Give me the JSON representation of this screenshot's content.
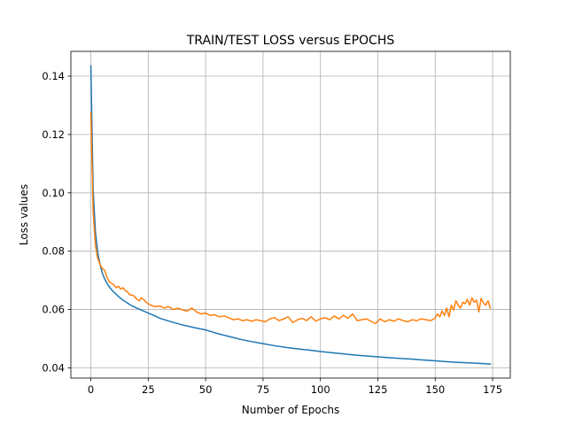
{
  "chart_data": {
    "type": "line",
    "title": "TRAIN/TEST LOSS versus EPOCHS",
    "xlabel": "Number of Epochs",
    "ylabel": "Loss values",
    "xlim": [
      -8.7,
      182.7
    ],
    "ylim": [
      0.0365,
      0.1485
    ],
    "xticks": [
      0,
      25,
      50,
      75,
      100,
      125,
      150,
      175
    ],
    "yticks": [
      0.04,
      0.06,
      0.08,
      0.1,
      0.12,
      0.14
    ],
    "ytick_labels": [
      "0.04",
      "0.06",
      "0.08",
      "0.10",
      "0.12",
      "0.14"
    ],
    "grid": true,
    "series": [
      {
        "color": "#1f77b4",
        "x": [
          0,
          1,
          2,
          3,
          4,
          5,
          6,
          7,
          8,
          9,
          10,
          12,
          14,
          16,
          18,
          20,
          22,
          25,
          28,
          30,
          35,
          40,
          45,
          50,
          55,
          60,
          65,
          70,
          75,
          80,
          85,
          90,
          95,
          100,
          105,
          110,
          115,
          120,
          125,
          130,
          135,
          140,
          145,
          150,
          155,
          160,
          165,
          170,
          174
        ],
        "y": [
          0.1435,
          0.101,
          0.0865,
          0.0795,
          0.0755,
          0.0725,
          0.0705,
          0.069,
          0.0678,
          0.0668,
          0.066,
          0.0645,
          0.0632,
          0.0622,
          0.0612,
          0.0605,
          0.0598,
          0.0588,
          0.0578,
          0.057,
          0.0558,
          0.0547,
          0.0538,
          0.053,
          0.0518,
          0.0508,
          0.0498,
          0.049,
          0.0483,
          0.0476,
          0.047,
          0.0465,
          0.0461,
          0.0456,
          0.0452,
          0.0448,
          0.0444,
          0.0441,
          0.0438,
          0.0435,
          0.0432,
          0.043,
          0.0427,
          0.0424,
          0.0421,
          0.0419,
          0.0417,
          0.0415,
          0.0413
        ]
      },
      {
        "color": "#ff7f0e",
        "x": [
          0,
          1,
          2,
          3,
          4,
          5,
          6,
          7,
          8,
          9,
          10,
          11,
          12,
          13,
          14,
          15,
          16,
          17,
          18,
          19,
          20,
          21,
          22,
          23,
          24,
          25,
          26,
          28,
          30,
          32,
          34,
          36,
          38,
          40,
          42,
          44,
          46,
          48,
          50,
          52,
          54,
          56,
          58,
          60,
          62,
          64,
          66,
          68,
          70,
          72,
          74,
          76,
          78,
          80,
          82,
          84,
          86,
          88,
          90,
          92,
          94,
          96,
          98,
          100,
          102,
          104,
          106,
          108,
          110,
          112,
          114,
          116,
          118,
          120,
          122,
          124,
          126,
          128,
          130,
          132,
          134,
          136,
          138,
          140,
          142,
          144,
          146,
          148,
          150,
          151,
          152,
          153,
          154,
          155,
          156,
          157,
          158,
          159,
          160,
          161,
          162,
          163,
          164,
          165,
          166,
          167,
          168,
          169,
          170,
          171,
          172,
          173,
          174
        ],
        "y": [
          0.1275,
          0.0935,
          0.082,
          0.0775,
          0.0755,
          0.074,
          0.0735,
          0.071,
          0.0695,
          0.069,
          0.0685,
          0.0675,
          0.068,
          0.067,
          0.0675,
          0.0665,
          0.066,
          0.065,
          0.065,
          0.0645,
          0.0635,
          0.063,
          0.064,
          0.0635,
          0.0625,
          0.062,
          0.0615,
          0.061,
          0.0612,
          0.0605,
          0.061,
          0.06,
          0.0605,
          0.0598,
          0.0595,
          0.0605,
          0.0592,
          0.0585,
          0.0588,
          0.058,
          0.0582,
          0.0575,
          0.0578,
          0.0572,
          0.0565,
          0.0568,
          0.0562,
          0.0565,
          0.056,
          0.0565,
          0.0562,
          0.0558,
          0.0568,
          0.0572,
          0.0562,
          0.0568,
          0.0575,
          0.0555,
          0.0565,
          0.057,
          0.0562,
          0.0575,
          0.056,
          0.0568,
          0.0572,
          0.0565,
          0.0578,
          0.0568,
          0.058,
          0.057,
          0.0585,
          0.0562,
          0.0565,
          0.0568,
          0.056,
          0.0552,
          0.0568,
          0.0558,
          0.0565,
          0.056,
          0.0568,
          0.0562,
          0.0558,
          0.0565,
          0.0562,
          0.0568,
          0.0565,
          0.0562,
          0.057,
          0.0585,
          0.0575,
          0.0595,
          0.058,
          0.0605,
          0.0575,
          0.0615,
          0.0598,
          0.063,
          0.0615,
          0.0605,
          0.0625,
          0.062,
          0.0635,
          0.0615,
          0.064,
          0.0625,
          0.0632,
          0.0592,
          0.0638,
          0.0622,
          0.0615,
          0.063,
          0.0605
        ]
      }
    ]
  }
}
